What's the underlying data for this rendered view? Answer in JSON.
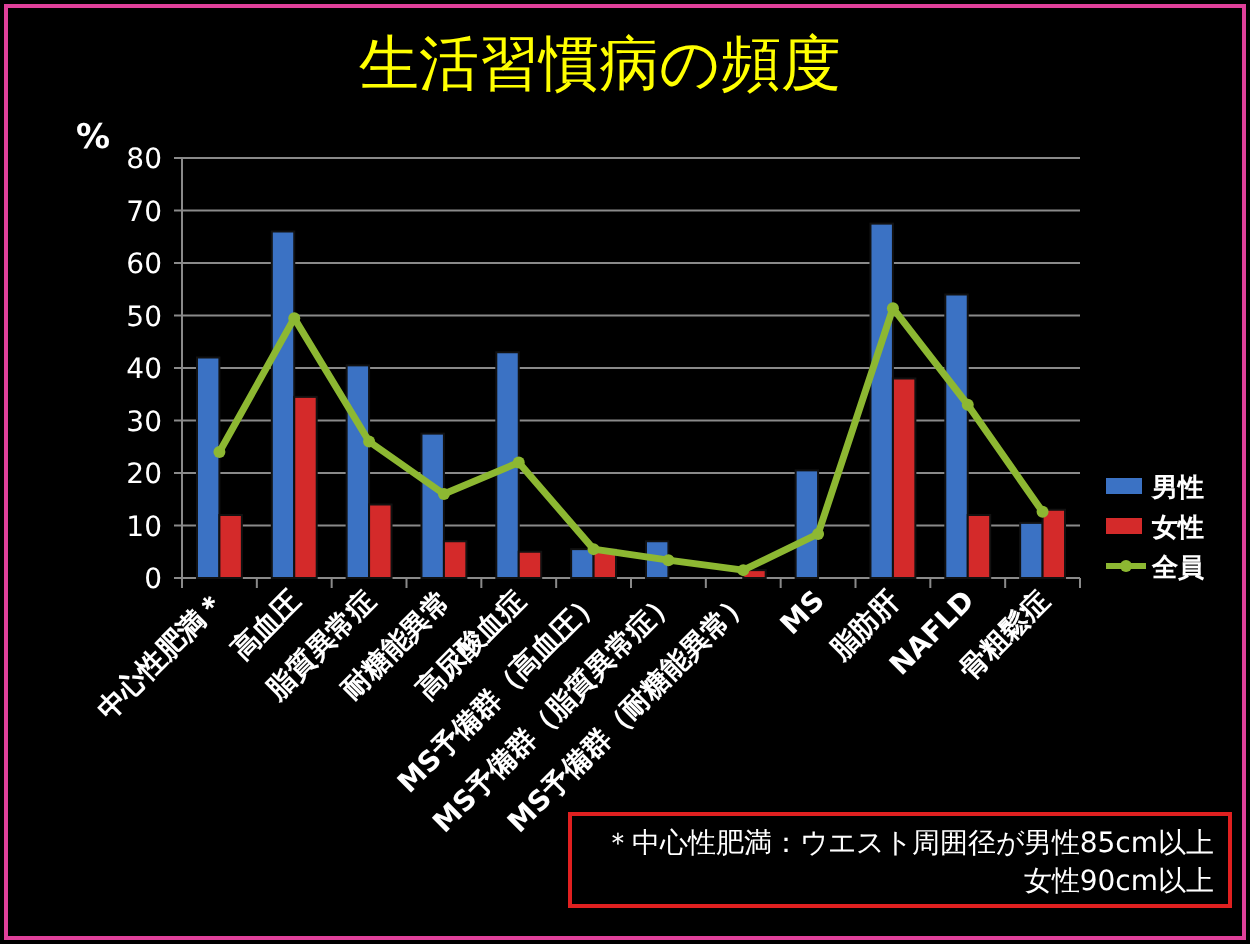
{
  "chart_data": {
    "type": "bar",
    "title": "生活習慣病の頻度",
    "ylabel": "%",
    "categories": [
      "中心性肥満＊",
      "高血圧",
      "脂質異常症",
      "耐糖能異常",
      "高尿酸血症",
      "MS予備群（高血圧）",
      "MS予備群（脂質異常症）",
      "MS予備群（耐糖能異常）",
      "MS",
      "脂肪肝",
      "NAFLD",
      "骨粗鬆症"
    ],
    "series": [
      {
        "name": "男性",
        "color": "#3b72c4",
        "values": [
          42,
          66,
          40.5,
          27.5,
          43,
          5.5,
          7,
          0,
          20.5,
          67.5,
          54,
          10.5
        ]
      },
      {
        "name": "女性",
        "color": "#d42a2a",
        "values": [
          12,
          34.5,
          14,
          7,
          5,
          5.5,
          0,
          1.5,
          0,
          38,
          12,
          13
        ]
      },
      {
        "name": "全員",
        "color": "#8db832",
        "type": "line",
        "values": [
          24,
          49.5,
          26,
          16,
          22,
          5.5,
          3.4,
          1.5,
          8.4,
          51.4,
          33,
          12.6
        ]
      }
    ],
    "ylim": [
      0,
      80
    ],
    "yticks": [
      0,
      10,
      20,
      30,
      40,
      50,
      60,
      70,
      80
    ],
    "grid": "y",
    "legend": "right",
    "marker": "circle",
    "annotations": [
      "＊中心性肥満：ウエスト周囲径が男性85cm以上",
      "女性90cm以上"
    ]
  }
}
